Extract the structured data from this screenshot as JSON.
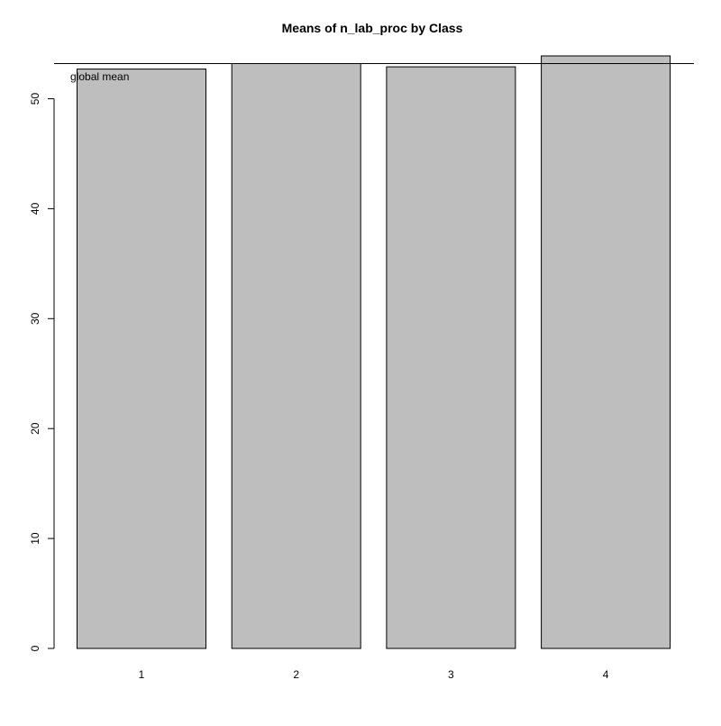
{
  "chart_data": {
    "type": "bar",
    "title": "Means of n_lab_proc by Class",
    "xlabel": "",
    "ylabel": "",
    "categories": [
      "1",
      "2",
      "3",
      "4"
    ],
    "values": [
      52.7,
      53.2,
      52.9,
      53.9
    ],
    "ylim": [
      0,
      54
    ],
    "y_ticks": [
      "0",
      "10",
      "20",
      "30",
      "40",
      "50"
    ],
    "reference_line": {
      "value": 53.2,
      "label": "global mean"
    },
    "grid": false,
    "legend": "none",
    "colors": {
      "bar_fill": "#bebebe",
      "bar_stroke": "#000000",
      "axis": "#000000"
    }
  }
}
